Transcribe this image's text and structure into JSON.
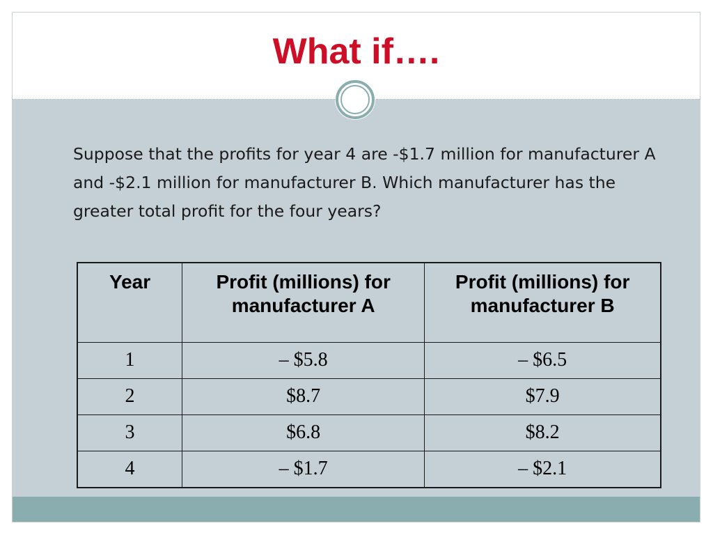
{
  "slide": {
    "title": "What if….",
    "body": "Suppose that the profits for year 4 are -$1.7 million for manufacturer A and -$2.1 million for manufacturer B. Which manufacturer has the greater total profit for the four years?"
  },
  "table": {
    "headers": [
      "Year",
      "Profit (millions) for manufacturer A",
      "Profit (millions) for manufacturer B"
    ],
    "rows": [
      [
        "1",
        "– $5.8",
        "– $6.5"
      ],
      [
        "2",
        "$8.7",
        "$7.9"
      ],
      [
        "3",
        "$6.8",
        "$8.2"
      ],
      [
        "4",
        "– $1.7",
        "– $2.1"
      ]
    ]
  },
  "colors": {
    "title": "#cc0f26",
    "content_background": "#c5d0d6",
    "footer": "#8aaeb0",
    "header_background": "#ffffff"
  }
}
